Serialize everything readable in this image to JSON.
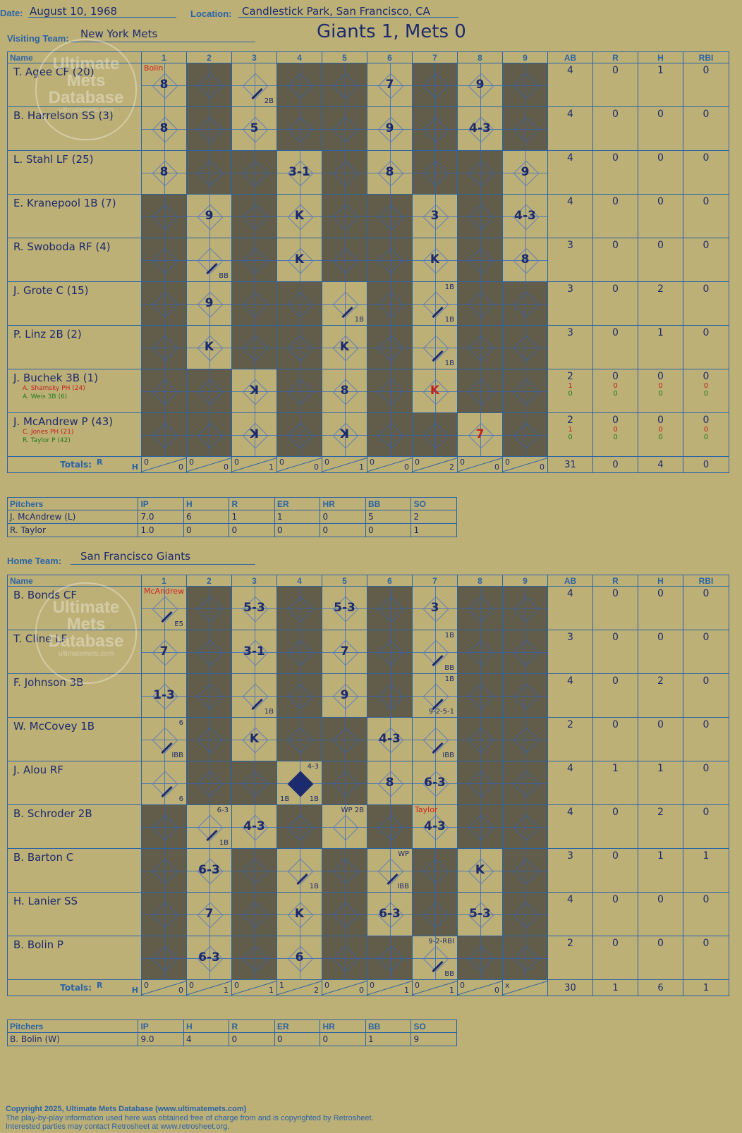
{
  "header": {
    "date_label": "Date:",
    "date": "August 10, 1968",
    "location_label": "Location:",
    "location": "Candlestick Park, San Francisco, CA",
    "visiting_label": "Visiting Team:",
    "visiting_team": "New York Mets",
    "result": "Giants 1, Mets 0",
    "home_label": "Home Team:",
    "home_team": "San Francisco Giants"
  },
  "columns": {
    "name": "Name",
    "innings": [
      "1",
      "2",
      "3",
      "4",
      "5",
      "6",
      "7",
      "8",
      "9"
    ],
    "stats": [
      "AB",
      "R",
      "H",
      "RBI"
    ]
  },
  "totals_label": "Totals:",
  "rh_labels": {
    "r": "R",
    "h": "H"
  },
  "watermark": {
    "text": "Ultimate Mets Database",
    "url": "ultimatemets.com"
  },
  "visitors": {
    "players": [
      {
        "name": "T. Agee CF (20)",
        "stats": [
          "4",
          "0",
          "1",
          "0"
        ],
        "cells": [
          {
            "p": "8",
            "pitcher": "Bolin"
          },
          {
            "dark": true
          },
          {
            "p": "",
            "reach": "2B"
          },
          {
            "dark": true
          },
          {
            "dark": true
          },
          {
            "p": "7"
          },
          {
            "dark": true
          },
          {
            "p": "9"
          },
          {
            "dark": true
          }
        ]
      },
      {
        "name": "B. Harrelson SS (3)",
        "stats": [
          "4",
          "0",
          "0",
          "0"
        ],
        "cells": [
          {
            "p": "8"
          },
          {
            "dark": true
          },
          {
            "p": "5"
          },
          {
            "dark": true
          },
          {
            "dark": true
          },
          {
            "p": "9"
          },
          {
            "dark": true
          },
          {
            "p": "4-3"
          },
          {
            "dark": true
          }
        ]
      },
      {
        "name": "L. Stahl LF (25)",
        "stats": [
          "4",
          "0",
          "0",
          "0"
        ],
        "cells": [
          {
            "p": "8"
          },
          {
            "dark": true
          },
          {
            "dark": true
          },
          {
            "p": "3-1"
          },
          {
            "dark": true
          },
          {
            "p": "8"
          },
          {
            "dark": true
          },
          {
            "dark": true
          },
          {
            "p": "9"
          }
        ]
      },
      {
        "name": "E. Kranepool 1B (7)",
        "stats": [
          "4",
          "0",
          "0",
          "0"
        ],
        "cells": [
          {
            "dark": true
          },
          {
            "p": "9"
          },
          {
            "dark": true
          },
          {
            "p": "K"
          },
          {
            "dark": true
          },
          {
            "dark": true
          },
          {
            "p": "3"
          },
          {
            "dark": true
          },
          {
            "p": "4-3"
          }
        ]
      },
      {
        "name": "R. Swoboda RF (4)",
        "stats": [
          "3",
          "0",
          "0",
          "0"
        ],
        "cells": [
          {
            "dark": true
          },
          {
            "p": "",
            "reach": "BB"
          },
          {
            "dark": true
          },
          {
            "p": "K"
          },
          {
            "dark": true
          },
          {
            "dark": true
          },
          {
            "p": "K"
          },
          {
            "dark": true
          },
          {
            "p": "8"
          }
        ]
      },
      {
        "name": "J. Grote C (15)",
        "stats": [
          "3",
          "0",
          "2",
          "0"
        ],
        "cells": [
          {
            "dark": true
          },
          {
            "p": "9"
          },
          {
            "dark": true
          },
          {
            "dark": true
          },
          {
            "p": "",
            "reach": "1B"
          },
          {
            "dark": true
          },
          {
            "p": "",
            "reach": "1B",
            "adv": "1B"
          },
          {
            "dark": true
          },
          {
            "dark": true
          }
        ]
      },
      {
        "name": "P. Linz 2B (2)",
        "stats": [
          "3",
          "0",
          "1",
          "0"
        ],
        "cells": [
          {
            "dark": true
          },
          {
            "p": "K"
          },
          {
            "dark": true
          },
          {
            "dark": true
          },
          {
            "p": "K"
          },
          {
            "dark": true
          },
          {
            "p": "",
            "reach": "1B"
          },
          {
            "dark": true
          },
          {
            "dark": true
          }
        ]
      },
      {
        "name": "J. Buchek 3B (1)",
        "subs": [
          {
            "name": "A. Shamsky PH (24)",
            "cls": "sub1",
            "stats": [
              "1",
              "0",
              "0",
              "0"
            ]
          },
          {
            "name": "A. Weis 3B (6)",
            "cls": "sub2",
            "stats": [
              "0",
              "0",
              "0",
              "0"
            ]
          }
        ],
        "stats": [
          "2",
          "0",
          "0",
          "0"
        ],
        "cells": [
          {
            "dark": true
          },
          {
            "dark": true
          },
          {
            "p": "ꓘ"
          },
          {
            "dark": true
          },
          {
            "p": "8"
          },
          {
            "dark": true
          },
          {
            "p": "K",
            "red": true
          },
          {
            "dark": true
          },
          {
            "dark": true
          }
        ]
      },
      {
        "name": "J. McAndrew P (43)",
        "subs": [
          {
            "name": "C. Jones PH (21)",
            "cls": "sub1",
            "stats": [
              "1",
              "0",
              "0",
              "0"
            ]
          },
          {
            "name": "R. Taylor P (42)",
            "cls": "sub2",
            "stats": [
              "0",
              "0",
              "0",
              "0"
            ]
          }
        ],
        "stats": [
          "2",
          "0",
          "0",
          "0"
        ],
        "cells": [
          {
            "dark": true
          },
          {
            "dark": true
          },
          {
            "p": "ꓘ"
          },
          {
            "dark": true
          },
          {
            "p": "ꓘ"
          },
          {
            "dark": true
          },
          {
            "dark": true
          },
          {
            "p": "7",
            "red": true
          },
          {
            "dark": true
          }
        ]
      }
    ],
    "totals": [
      [
        "0",
        "0"
      ],
      [
        "0",
        "0"
      ],
      [
        "0",
        "1"
      ],
      [
        "0",
        "0"
      ],
      [
        "0",
        "1"
      ],
      [
        "0",
        "0"
      ],
      [
        "0",
        "2"
      ],
      [
        "0",
        "0"
      ],
      [
        "0",
        "0"
      ]
    ],
    "totals_stats": [
      "31",
      "0",
      "4",
      "0"
    ],
    "pitchers_header": [
      "Pitchers",
      "IP",
      "H",
      "R",
      "ER",
      "HR",
      "BB",
      "SO"
    ],
    "pitchers": [
      [
        "J. McAndrew (L)",
        "7.0",
        "6",
        "1",
        "1",
        "0",
        "5",
        "2"
      ],
      [
        "R. Taylor",
        "1.0",
        "0",
        "0",
        "0",
        "0",
        "0",
        "1"
      ]
    ]
  },
  "home": {
    "players": [
      {
        "name": "B. Bonds CF",
        "stats": [
          "4",
          "0",
          "0",
          "0"
        ],
        "cells": [
          {
            "p": "",
            "reach": "E5",
            "pitcher": "McAndrew"
          },
          {
            "dark": true
          },
          {
            "p": "5-3"
          },
          {
            "dark": true
          },
          {
            "p": "5-3"
          },
          {
            "dark": true
          },
          {
            "p": "3"
          },
          {
            "dark": true
          },
          {
            "dark": true
          }
        ]
      },
      {
        "name": "T. Cline LF",
        "stats": [
          "3",
          "0",
          "0",
          "0"
        ],
        "cells": [
          {
            "p": "7"
          },
          {
            "dark": true
          },
          {
            "p": "3-1"
          },
          {
            "dark": true
          },
          {
            "p": "7"
          },
          {
            "dark": true
          },
          {
            "p": "",
            "reach": "BB",
            "adv": "1B"
          },
          {
            "dark": true
          },
          {
            "dark": true
          }
        ]
      },
      {
        "name": "F. Johnson 3B",
        "stats": [
          "4",
          "0",
          "2",
          "0"
        ],
        "cells": [
          {
            "p": "1-3"
          },
          {
            "dark": true
          },
          {
            "p": "",
            "reach": "1B"
          },
          {
            "dark": true
          },
          {
            "p": "9"
          },
          {
            "dark": true
          },
          {
            "p": "",
            "reach": "9-2-5-1",
            "adv": "1B"
          },
          {
            "dark": true
          },
          {
            "dark": true
          }
        ]
      },
      {
        "name": "W. McCovey 1B",
        "stats": [
          "2",
          "0",
          "0",
          "0"
        ],
        "cells": [
          {
            "p": "",
            "reach": "IBB",
            "adv": "6"
          },
          {
            "dark": true
          },
          {
            "p": "K"
          },
          {
            "dark": true
          },
          {
            "dark": true
          },
          {
            "p": "4-3"
          },
          {
            "p": "",
            "reach": "IBB"
          },
          {
            "dark": true
          },
          {
            "dark": true
          }
        ]
      },
      {
        "name": "J. Alou RF",
        "stats": [
          "4",
          "1",
          "1",
          "0"
        ],
        "cells": [
          {
            "p": "",
            "reach": "6"
          },
          {
            "dark": true
          },
          {
            "dark": true
          },
          {
            "p": "",
            "run": true,
            "reach": "1B",
            "adv": "4-3",
            "left": "1B"
          },
          {
            "dark": true
          },
          {
            "p": "8"
          },
          {
            "p": "6-3"
          },
          {
            "dark": true
          },
          {
            "dark": true
          }
        ]
      },
      {
        "name": "B. Schroder 2B",
        "stats": [
          "4",
          "0",
          "2",
          "0"
        ],
        "cells": [
          {
            "dark": true
          },
          {
            "p": "",
            "reach": "1B",
            "adv": "6-3"
          },
          {
            "p": "4-3"
          },
          {
            "dark": true
          },
          {
            "p": "",
            "reach": "",
            "adv": "WP 2B"
          },
          {
            "dark": true
          },
          {
            "p": "4-3",
            "pitcher": "Taylor"
          },
          {
            "dark": true
          },
          {
            "dark": true
          }
        ]
      },
      {
        "name": "B. Barton C",
        "stats": [
          "3",
          "0",
          "1",
          "1"
        ],
        "cells": [
          {
            "dark": true
          },
          {
            "p": "6-3"
          },
          {
            "dark": true
          },
          {
            "p": "",
            "reach": "1B"
          },
          {
            "dark": true
          },
          {
            "p": "",
            "reach": "IBB",
            "adv": "WP"
          },
          {
            "dark": true
          },
          {
            "p": "K"
          },
          {
            "dark": true
          }
        ]
      },
      {
        "name": "H. Lanier SS",
        "stats": [
          "4",
          "0",
          "0",
          "0"
        ],
        "cells": [
          {
            "dark": true
          },
          {
            "p": "7"
          },
          {
            "dark": true
          },
          {
            "p": "K"
          },
          {
            "dark": true
          },
          {
            "p": "6-3"
          },
          {
            "dark": true
          },
          {
            "p": "5-3"
          },
          {
            "dark": true
          }
        ]
      },
      {
        "name": "B. Bolin P",
        "stats": [
          "2",
          "0",
          "0",
          "0"
        ],
        "cells": [
          {
            "dark": true
          },
          {
            "p": "6-3"
          },
          {
            "dark": true
          },
          {
            "p": "6"
          },
          {
            "dark": true
          },
          {
            "dark": true
          },
          {
            "p": "",
            "reach": "BB",
            "adv": "9-2-RBI"
          },
          {
            "dark": true
          },
          {
            "dark": true
          }
        ]
      }
    ],
    "totals": [
      [
        "0",
        "0"
      ],
      [
        "0",
        "1"
      ],
      [
        "0",
        "1"
      ],
      [
        "1",
        "2"
      ],
      [
        "0",
        "0"
      ],
      [
        "0",
        "1"
      ],
      [
        "0",
        "1"
      ],
      [
        "0",
        "0"
      ],
      [
        "x",
        ""
      ]
    ],
    "totals_stats": [
      "30",
      "1",
      "6",
      "1"
    ],
    "pitchers_header": [
      "Pitchers",
      "IP",
      "H",
      "R",
      "ER",
      "HR",
      "BB",
      "SO"
    ],
    "pitchers": [
      [
        "B. Bolin (W)",
        "9.0",
        "4",
        "0",
        "0",
        "0",
        "1",
        "9"
      ]
    ]
  },
  "footer": {
    "line1": "Copyright 2025, Ultimate Mets Database (www.ultimatemets.com)",
    "line2": "The play-by-play information used here was obtained free of charge from and is copyrighted by Retrosheet.",
    "line3": "Interested parties may contact Retrosheet at www.retrosheet.org."
  }
}
